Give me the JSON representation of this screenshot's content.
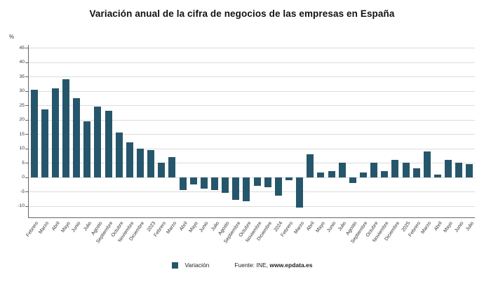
{
  "title": "Variación anual de la cifra de negocios de las empresas en España",
  "y_axis_unit": "%",
  "legend": {
    "label": "Variación"
  },
  "source": {
    "prefix": "Fuente: INE, ",
    "site": "www.epdata.es"
  },
  "colors": {
    "bar": "#26566B",
    "grid": "#dcdcdc",
    "axis": "#666666",
    "text": "#333333"
  },
  "chart_data": {
    "type": "bar",
    "title": "Variación anual de la cifra de negocios de las empresas en España",
    "xlabel": "",
    "ylabel": "%",
    "ylim": [
      -14,
      46
    ],
    "grid": true,
    "legend_position": "bottom",
    "yticks": [
      45,
      40,
      35,
      30,
      25,
      20,
      15,
      10,
      5,
      0,
      -5,
      -10
    ],
    "categories": [
      "Febrero",
      "Marzo",
      "Abril",
      "Mayo",
      "Junio",
      "Julio",
      "Agosto",
      "Septiembre",
      "Octubre",
      "Noviembre",
      "Diciembre",
      "2023",
      "Febrero",
      "Marzo",
      "Abril",
      "Mayo",
      "Junio",
      "Julio",
      "Agosto",
      "Septiembre",
      "Octubre",
      "Noviembre",
      "Diciembre",
      "2024",
      "Febrero",
      "Marzo",
      "Abril",
      "Mayo",
      "Junio",
      "Julio",
      "Agosto",
      "Septiembre",
      "Octubre",
      "Noviembre",
      "Diciembre",
      "2025",
      "Febrero",
      "Marzo",
      "Abril",
      "Mayo",
      "Junio",
      "Julio"
    ],
    "series": [
      {
        "name": "Variación",
        "values": [
          30.5,
          23.5,
          31,
          34,
          27.5,
          19.5,
          24.5,
          23,
          15.5,
          12,
          10,
          9.5,
          5,
          7,
          -4.5,
          -2.5,
          -4,
          -4.5,
          -5.5,
          -8,
          -8.5,
          -3,
          -3.5,
          -6.5,
          -1,
          -10.5,
          8,
          1.5,
          2,
          5,
          -2,
          1.5,
          5,
          2,
          6,
          5,
          3,
          9,
          1,
          6,
          5,
          4.5
        ]
      }
    ]
  }
}
